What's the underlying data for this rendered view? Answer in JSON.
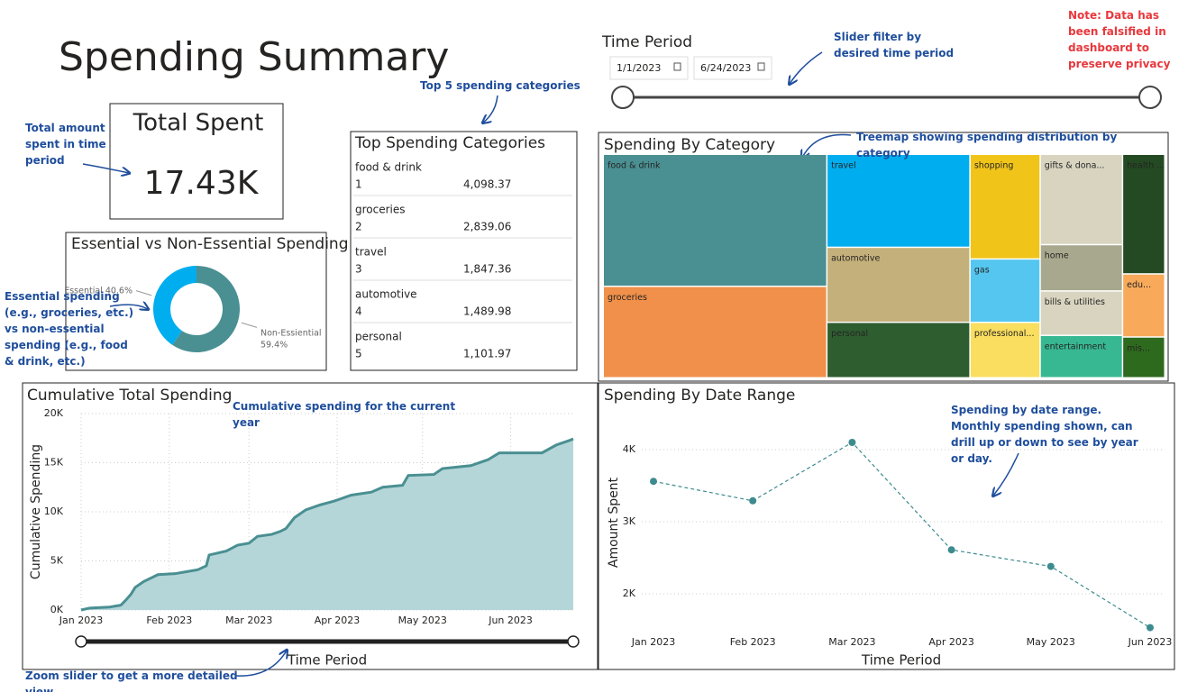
{
  "header": {
    "title": "Spending Summary",
    "note": "Note: Data has been falsified in dashboard to preserve privacy"
  },
  "time_filter": {
    "label": "Time Period",
    "start": "1/1/2023",
    "end": "6/24/2023"
  },
  "total_card": {
    "title": "Total Spent",
    "value": "17.43K"
  },
  "top_categories": {
    "title": "Top Spending Categories",
    "rows": [
      {
        "category": "food & drink",
        "rank": 1,
        "amount": "4,098.37"
      },
      {
        "category": "groceries",
        "rank": 2,
        "amount": "2,839.06"
      },
      {
        "category": "travel",
        "rank": 3,
        "amount": "1,847.36"
      },
      {
        "category": "automotive",
        "rank": 4,
        "amount": "1,489.98"
      },
      {
        "category": "personal",
        "rank": 5,
        "amount": "1,101.97"
      }
    ]
  },
  "annotations": [
    "Slider filter by desired time period",
    "Top 5 spending categories",
    "Total amount spent in time period",
    "Treemap showing spending distribution by category",
    "Essential spending (e.g., groceries, etc.) vs non-essential spending (e.g., food & drink, etc.)",
    "Cumulative spending for the current year",
    "Spending by date range.  Monthly spending shown, can drill up or down to see by year or day.",
    "Zoom slider to get a more detailed view"
  ],
  "chart_data": [
    {
      "type": "pie",
      "title": "Essential vs Non-Essential Spending",
      "categories": [
        "Essential",
        "Non-Essiential"
      ],
      "values": [
        40.6,
        59.4
      ],
      "value_labels": [
        "40.6%",
        "59.4%"
      ],
      "colors": [
        "#00aeef",
        "#4a8f92"
      ]
    },
    {
      "type": "treemap",
      "title": "Spending By Category",
      "categories": [
        "food & drink",
        "groceries",
        "travel",
        "automotive",
        "personal",
        "gifts & dona...",
        "shopping",
        "health ...",
        "gas",
        "professional...",
        "home",
        "bills & utilities",
        "entertainment",
        "edu...",
        "mis..."
      ],
      "values": [
        4098.37,
        2839.06,
        1847.36,
        1489.98,
        1101.97,
        1033,
        1020,
        701,
        618,
        540,
        530,
        508,
        485,
        370,
        239
      ],
      "colors": [
        "#4a8f92",
        "#f0904a",
        "#00aeef",
        "#c4b07a",
        "#2e5e30",
        "#d8d4c0",
        "#f0c419",
        "#234a22",
        "#55c6f0",
        "#f9de5f",
        "#a8a88e",
        "#d8d4c0",
        "#37b892",
        "#f8aa5a",
        "#2e6a1e"
      ]
    },
    {
      "type": "area",
      "title": "Cumulative Total Spending",
      "x_label": "Time Period",
      "y_label": "Cumulative Spending",
      "x": [
        0,
        3,
        10,
        14,
        16,
        17.5,
        19,
        22,
        27,
        33,
        37,
        41,
        44,
        45,
        51,
        55,
        59,
        62,
        67,
        70,
        72,
        75,
        79,
        84,
        89,
        95,
        102,
        106,
        113,
        115,
        124,
        127,
        137,
        143,
        147,
        162,
        167,
        172,
        173
      ],
      "values": [
        0,
        200,
        300,
        500,
        1100,
        1600,
        2300,
        2900,
        3600,
        3700,
        3900,
        4100,
        4500,
        5600,
        6000,
        6600,
        6800,
        7500,
        7700,
        8000,
        8300,
        9400,
        10200,
        10700,
        11100,
        11700,
        12000,
        12500,
        12700,
        13700,
        13800,
        14400,
        14700,
        15300,
        16000,
        16000,
        16800,
        17300,
        17430
      ],
      "color": "#4a8f92",
      "xlim": [
        0,
        173
      ],
      "xticks": [
        {
          "value": 0,
          "label": "Jan 2023"
        },
        {
          "value": 31,
          "label": "Feb 2023"
        },
        {
          "value": 59,
          "label": "Mar 2023"
        },
        {
          "value": 90,
          "label": "Apr 2023"
        },
        {
          "value": 120,
          "label": "May 2023"
        },
        {
          "value": 151,
          "label": "Jun 2023"
        }
      ],
      "ylim": [
        0,
        20000
      ],
      "yticks": [
        {
          "value": 0,
          "label": "0K"
        },
        {
          "value": 5000,
          "label": "5K"
        },
        {
          "value": 10000,
          "label": "10K"
        },
        {
          "value": 15000,
          "label": "15K"
        },
        {
          "value": 20000,
          "label": "20K"
        }
      ],
      "grid": true
    },
    {
      "type": "line",
      "title": "Spending By Date Range",
      "x_label": "Time Period",
      "y_label": "Amount Spent",
      "categories": [
        "Jan 2023",
        "Feb 2023",
        "Mar 2023",
        "Apr 2023",
        "May 2023",
        "Jun 2023"
      ],
      "values": [
        3560,
        3290,
        4100,
        2610,
        2380,
        1530
      ],
      "color": "#3d8b8e",
      "ylim": [
        1425,
        4550
      ],
      "yticks": [
        {
          "value": 2000,
          "label": "2K"
        },
        {
          "value": 3000,
          "label": "3K"
        },
        {
          "value": 4000,
          "label": "4K"
        }
      ],
      "grid": true
    }
  ]
}
